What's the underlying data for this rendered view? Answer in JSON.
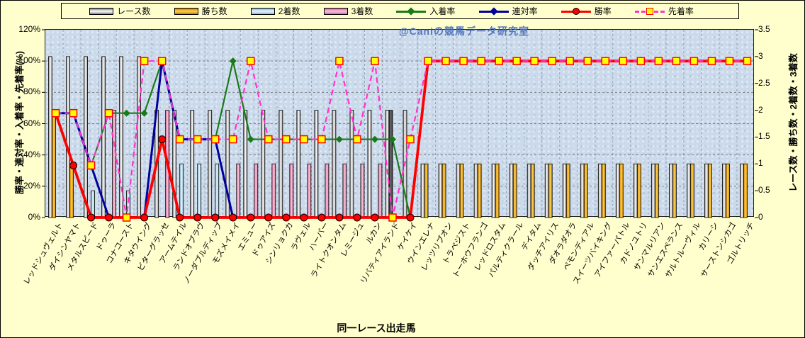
{
  "watermark": "@Caniの競馬データ研究室",
  "legend": {
    "items": [
      {
        "label": "レース数"
      },
      {
        "label": "勝ち数"
      },
      {
        "label": "2着数"
      },
      {
        "label": "3着数"
      },
      {
        "label": "入着率"
      },
      {
        "label": "連対率"
      },
      {
        "label": "勝率"
      },
      {
        "label": "先着率"
      }
    ]
  },
  "axes": {
    "left_title": "勝率・連対率・入着率・先着率(%)",
    "right_title": "レース数・勝ち数・2着数・3着数",
    "x_title": "同一レース出走馬",
    "left_ticks": [
      "0%",
      "20%",
      "40%",
      "60%",
      "80%",
      "100%",
      "120%"
    ],
    "right_ticks": [
      "0",
      "0.5",
      "1",
      "1.5",
      "2",
      "2.5",
      "3",
      "3.5"
    ]
  },
  "chart_data": {
    "type": "combo-bar-line",
    "title": "",
    "xlabel": "同一レース出走馬",
    "ylabel_left": "勝率・連対率・入着率・先着率(%)",
    "ylabel_right": "レース数・勝ち数・2着数・3着数",
    "ylim_left_percent": [
      0,
      120
    ],
    "ylim_right_count": [
      0,
      3.5
    ],
    "grid": true,
    "legend_position": "top",
    "categories": [
      "レッドシュヴェルト",
      "ダイシンヤマト",
      "メタルスピード",
      "ドゥーラ",
      "コナコースト",
      "キタウイング",
      "ビターグラッセ",
      "アームテイル",
      "ランドオブラヴ",
      "ノーダブルディップ",
      "モズメイメイ",
      "エミュー",
      "ドゥアイズ",
      "シンリョクカ",
      "ラヴェル",
      "ハーパー",
      "ライトクオンタム",
      "レミージュ",
      "ルカン",
      "リバティアイランド",
      "ケイケイ",
      "ウインエレナ",
      "レッツリブオン",
      "トラペジスト",
      "トーホウフランゴ",
      "レッドロスタム",
      "パルティクラール",
      "デイタム",
      "ダッチアイリス",
      "ダオラダオラ",
      "ペモンディアル",
      "スイーツバイキング",
      "アイファーパトル",
      "カドノユトリ",
      "サンマルリアン",
      "サンエスペランス",
      "サルトルーヴィル",
      "カリーシ",
      "サーストンシカゴ",
      "ゴルトリッチ"
    ],
    "series": [
      {
        "name": "レース数",
        "kind": "bar",
        "gradient": "race",
        "values": [
          3,
          3,
          3,
          3,
          3,
          3,
          2,
          2,
          2,
          2,
          2,
          2,
          2,
          2,
          2,
          2,
          2,
          2,
          2,
          2,
          2,
          1,
          1,
          1,
          1,
          1,
          1,
          1,
          1,
          1,
          1,
          1,
          1,
          1,
          1,
          1,
          1,
          1,
          1,
          1
        ]
      },
      {
        "name": "勝ち数",
        "kind": "bar",
        "gradient": "win",
        "values": [
          2,
          1,
          0,
          0,
          0,
          0,
          0,
          0,
          0,
          0,
          0,
          0,
          0,
          0,
          0,
          0,
          0,
          0,
          0,
          0,
          0,
          1,
          1,
          1,
          1,
          1,
          1,
          1,
          1,
          1,
          1,
          1,
          1,
          1,
          1,
          1,
          1,
          1,
          1,
          1
        ]
      },
      {
        "name": "2着数",
        "kind": "bar",
        "gradient": "second",
        "values": [
          0,
          0,
          0.5,
          0,
          0.5,
          0,
          0,
          1,
          1,
          1,
          0,
          0,
          0,
          0,
          0,
          0,
          0,
          0,
          0,
          0,
          0,
          0,
          0,
          0,
          0,
          0,
          0,
          0,
          0,
          0,
          0,
          0,
          0,
          0,
          0,
          0,
          0,
          0,
          0,
          0
        ]
      },
      {
        "name": "3着数",
        "kind": "bar",
        "gradient": "third",
        "values": [
          0,
          0,
          0,
          2,
          0,
          0,
          2,
          0,
          0,
          0,
          1,
          1,
          1,
          1,
          1,
          1,
          1,
          1,
          1,
          0,
          0,
          0,
          0,
          0,
          0,
          0,
          0,
          0,
          0,
          0,
          0,
          0,
          0,
          0,
          0,
          0,
          0,
          0,
          0,
          0
        ]
      },
      {
        "name": "入着率",
        "kind": "line",
        "color": "#1a7a1a",
        "marker": "diamond",
        "dashed": false,
        "stroke_width": 2.2,
        "values": [
          66.7,
          66.7,
          33.3,
          66.7,
          66.7,
          66.7,
          100,
          50,
          50,
          50,
          100,
          50,
          50,
          50,
          50,
          50,
          50,
          50,
          50,
          50,
          0,
          100,
          100,
          100,
          100,
          100,
          100,
          100,
          100,
          100,
          100,
          100,
          100,
          100,
          100,
          100,
          100,
          100,
          100,
          100
        ]
      },
      {
        "name": "連対率",
        "kind": "line",
        "color": "#00009c",
        "marker": "diamond",
        "dashed": false,
        "stroke_width": 3,
        "values": [
          66.7,
          66.7,
          33.3,
          0,
          0,
          0,
          100,
          50,
          50,
          50,
          0,
          0,
          0,
          0,
          0,
          0,
          0,
          0,
          0,
          0,
          0,
          100,
          100,
          100,
          100,
          100,
          100,
          100,
          100,
          100,
          100,
          100,
          100,
          100,
          100,
          100,
          100,
          100,
          100,
          100
        ]
      },
      {
        "name": "勝率",
        "kind": "line",
        "color": "#ff0000",
        "marker": "circle",
        "dashed": false,
        "stroke_width": 3.8,
        "values": [
          66.7,
          33.3,
          0,
          0,
          0,
          0,
          50,
          0,
          0,
          0,
          0,
          0,
          0,
          0,
          0,
          0,
          0,
          0,
          0,
          0,
          0,
          100,
          100,
          100,
          100,
          100,
          100,
          100,
          100,
          100,
          100,
          100,
          100,
          100,
          100,
          100,
          100,
          100,
          100,
          100
        ]
      },
      {
        "name": "先着率",
        "kind": "line",
        "color": "#ff33cc",
        "marker": "square",
        "dashed": true,
        "stroke_width": 2.2,
        "values": [
          66.7,
          66.7,
          33.3,
          66.7,
          0,
          100,
          100,
          50,
          50,
          50,
          50,
          100,
          50,
          50,
          50,
          50,
          100,
          50,
          100,
          0,
          50,
          100,
          100,
          100,
          100,
          100,
          100,
          100,
          100,
          100,
          100,
          100,
          100,
          100,
          100,
          100,
          100,
          100,
          100,
          100
        ]
      }
    ],
    "dark_bar": {
      "category_index": 19,
      "value": 2
    },
    "colors": {
      "plot_background": "#cbdaeb",
      "page_background": "#ffffcd",
      "placing_rate_green": "#1a7a1a",
      "quinella_rate_navy": "#00009c",
      "win_rate_red": "#ff0000",
      "precede_rate_magenta": "#ff33cc",
      "square_marker_fill": "#ffff00",
      "watermark_blue": "#4d6fb8"
    }
  }
}
